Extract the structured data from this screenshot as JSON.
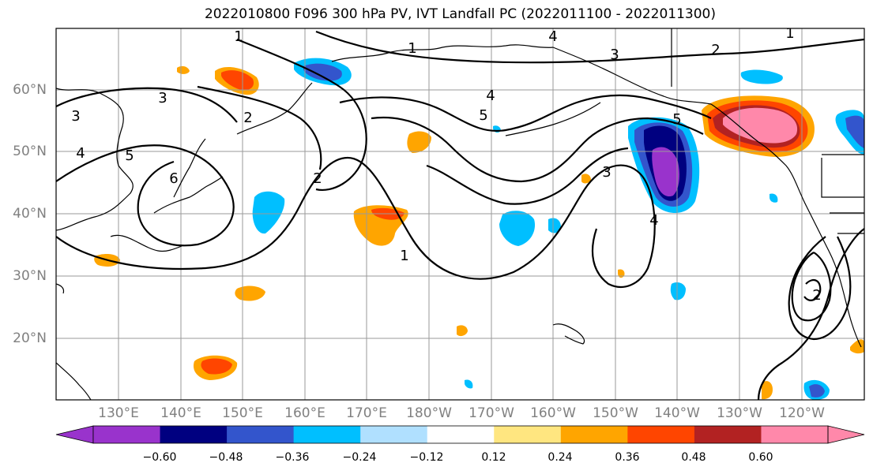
{
  "title": "2022010800 F096 300 hPa PV, IVT Landfall PC (2022011100 - 2022011300)",
  "latitude_labels": [
    "60°N",
    "50°N",
    "40°N",
    "30°N",
    "20°N"
  ],
  "longitude_labels": [
    "130°E",
    "140°E",
    "150°E",
    "160°E",
    "170°E",
    "180°W",
    "170°W",
    "160°W",
    "150°W",
    "140°W",
    "130°W",
    "120°W"
  ],
  "colorbar": {
    "tick_labels": [
      "−0.60",
      "−0.48",
      "−0.36",
      "−0.24",
      "−0.12",
      "0.12",
      "0.24",
      "0.36",
      "0.48",
      "0.60"
    ],
    "colors": [
      "#9933cc",
      "#000080",
      "#3355cc",
      "#00bfff",
      "#b0e0ff",
      "#ffffff",
      "#ffe680",
      "#ffa500",
      "#ff4500",
      "#b22222",
      "#ff88aa"
    ]
  },
  "contour_labels": [
    "1",
    "1",
    "1",
    "1",
    "2",
    "2",
    "2",
    "2",
    "3",
    "3",
    "3",
    "3",
    "4",
    "4",
    "4",
    "4",
    "5",
    "5",
    "5",
    "6"
  ]
}
